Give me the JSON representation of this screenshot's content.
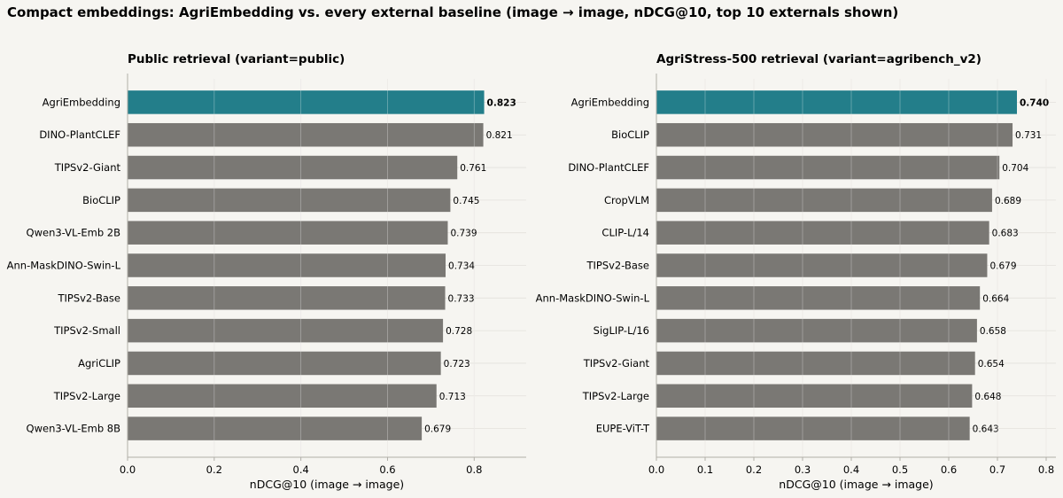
{
  "title": "Compact embeddings: AgriEmbedding vs. every external baseline (image → image, nDCG@10, top 10 externals shown)",
  "colors": {
    "highlight": "#237e8a",
    "bar": "#7a7874",
    "grid": "#e3e1dc",
    "axis": "#b0aea8"
  },
  "chart_data": [
    {
      "type": "bar",
      "orientation": "horizontal",
      "title": "Public retrieval (variant=public)",
      "xlabel": "nDCG@10 (image → image)",
      "xlim": [
        0,
        0.92
      ],
      "xticks": [
        0.0,
        0.2,
        0.4,
        0.6,
        0.8
      ],
      "tick_labels": [
        "0.0",
        "0.2",
        "0.4",
        "0.6",
        "0.8"
      ],
      "categories": [
        "AgriEmbedding",
        "DINO-PlantCLEF",
        "TIPSv2-Giant",
        "BioCLIP",
        "Qwen3-VL-Emb 2B",
        "Ann-MaskDINO-Swin-L",
        "TIPSv2-Base",
        "TIPSv2-Small",
        "AgriCLIP",
        "TIPSv2-Large",
        "Qwen3-VL-Emb 8B"
      ],
      "values": [
        0.823,
        0.821,
        0.761,
        0.745,
        0.739,
        0.734,
        0.733,
        0.728,
        0.723,
        0.713,
        0.679
      ],
      "value_labels": [
        "0.823",
        "0.821",
        "0.761",
        "0.745",
        "0.739",
        "0.734",
        "0.733",
        "0.728",
        "0.723",
        "0.713",
        "0.679"
      ],
      "highlight": "AgriEmbedding",
      "grid": true
    },
    {
      "type": "bar",
      "orientation": "horizontal",
      "title": "AgriStress-500 retrieval (variant=agribench_v2)",
      "xlabel": "nDCG@10 (image → image)",
      "xlim": [
        0,
        0.82
      ],
      "xticks": [
        0.0,
        0.1,
        0.2,
        0.3,
        0.4,
        0.5,
        0.6,
        0.7,
        0.8
      ],
      "tick_labels": [
        "0.0",
        "0.1",
        "0.2",
        "0.3",
        "0.4",
        "0.5",
        "0.6",
        "0.7",
        "0.8"
      ],
      "categories": [
        "AgriEmbedding",
        "BioCLIP",
        "DINO-PlantCLEF",
        "CropVLM",
        "CLIP-L/14",
        "TIPSv2-Base",
        "Ann-MaskDINO-Swin-L",
        "SigLIP-L/16",
        "TIPSv2-Giant",
        "TIPSv2-Large",
        "EUPE-ViT-T"
      ],
      "values": [
        0.74,
        0.731,
        0.704,
        0.689,
        0.683,
        0.679,
        0.664,
        0.658,
        0.654,
        0.648,
        0.643
      ],
      "value_labels": [
        "0.740",
        "0.731",
        "0.704",
        "0.689",
        "0.683",
        "0.679",
        "0.664",
        "0.658",
        "0.654",
        "0.648",
        "0.643"
      ],
      "highlight": "AgriEmbedding",
      "grid": true
    }
  ]
}
